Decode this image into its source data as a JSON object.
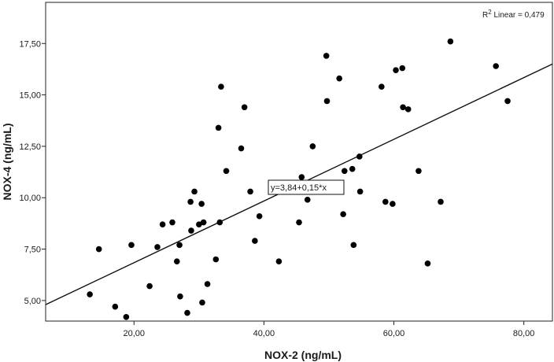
{
  "chart_data": {
    "type": "scatter",
    "title": "",
    "xlabel": "NOX-2 (ng/mL)",
    "ylabel": "NOX-4 (ng/mL)",
    "xlim": [
      6.4,
      84.4
    ],
    "ylim": [
      4.0,
      19.5
    ],
    "x_ticks": [
      20,
      40,
      60,
      80
    ],
    "x_tick_labels": [
      "20,00",
      "40,00",
      "60,00",
      "80,00"
    ],
    "y_ticks": [
      5.0,
      7.5,
      10.0,
      12.5,
      15.0,
      17.5
    ],
    "y_tick_labels": [
      "5,00",
      "7,50",
      "10,00",
      "12,50",
      "15,00",
      "17,50"
    ],
    "grid": false,
    "fit_line": {
      "intercept": 3.84,
      "slope": 0.15,
      "label": "y=3,84+0,15*x"
    },
    "r2_label": {
      "prefix": "R",
      "superscript": "2",
      "suffix": " Linear = 0,479"
    },
    "point_color": "#000000",
    "points": [
      {
        "x": 13.2,
        "y": 5.3
      },
      {
        "x": 14.6,
        "y": 7.5
      },
      {
        "x": 17.1,
        "y": 4.7
      },
      {
        "x": 18.8,
        "y": 4.2
      },
      {
        "x": 19.6,
        "y": 7.7
      },
      {
        "x": 22.4,
        "y": 5.7
      },
      {
        "x": 23.6,
        "y": 7.6
      },
      {
        "x": 24.4,
        "y": 8.7
      },
      {
        "x": 25.9,
        "y": 8.8
      },
      {
        "x": 26.6,
        "y": 6.9
      },
      {
        "x": 27.0,
        "y": 7.7
      },
      {
        "x": 27.1,
        "y": 5.2
      },
      {
        "x": 28.2,
        "y": 4.4
      },
      {
        "x": 28.7,
        "y": 9.8
      },
      {
        "x": 28.8,
        "y": 8.4
      },
      {
        "x": 29.3,
        "y": 10.3
      },
      {
        "x": 30.0,
        "y": 8.7
      },
      {
        "x": 30.4,
        "y": 9.7
      },
      {
        "x": 30.5,
        "y": 4.9
      },
      {
        "x": 30.7,
        "y": 8.8
      },
      {
        "x": 31.3,
        "y": 5.8
      },
      {
        "x": 32.6,
        "y": 7.0
      },
      {
        "x": 33.0,
        "y": 13.4
      },
      {
        "x": 33.2,
        "y": 8.8
      },
      {
        "x": 33.4,
        "y": 15.4
      },
      {
        "x": 34.2,
        "y": 11.3
      },
      {
        "x": 36.5,
        "y": 12.4
      },
      {
        "x": 37.0,
        "y": 14.4
      },
      {
        "x": 37.9,
        "y": 10.3
      },
      {
        "x": 38.6,
        "y": 7.9
      },
      {
        "x": 39.3,
        "y": 9.1
      },
      {
        "x": 42.3,
        "y": 6.9
      },
      {
        "x": 45.4,
        "y": 8.8
      },
      {
        "x": 45.8,
        "y": 11.0
      },
      {
        "x": 46.7,
        "y": 9.9
      },
      {
        "x": 47.5,
        "y": 12.5
      },
      {
        "x": 49.6,
        "y": 16.9
      },
      {
        "x": 49.7,
        "y": 14.7
      },
      {
        "x": 51.6,
        "y": 15.8
      },
      {
        "x": 52.2,
        "y": 9.2
      },
      {
        "x": 52.4,
        "y": 11.3
      },
      {
        "x": 53.6,
        "y": 11.4
      },
      {
        "x": 53.8,
        "y": 7.7
      },
      {
        "x": 54.7,
        "y": 12.0
      },
      {
        "x": 54.8,
        "y": 10.3
      },
      {
        "x": 58.1,
        "y": 15.4
      },
      {
        "x": 58.7,
        "y": 9.8
      },
      {
        "x": 59.8,
        "y": 9.7
      },
      {
        "x": 60.3,
        "y": 16.2
      },
      {
        "x": 61.3,
        "y": 16.3
      },
      {
        "x": 61.4,
        "y": 14.4
      },
      {
        "x": 62.2,
        "y": 14.3
      },
      {
        "x": 63.8,
        "y": 11.3
      },
      {
        "x": 65.2,
        "y": 6.8
      },
      {
        "x": 67.2,
        "y": 9.8
      },
      {
        "x": 68.7,
        "y": 17.6
      },
      {
        "x": 75.7,
        "y": 16.4
      },
      {
        "x": 77.5,
        "y": 14.7
      }
    ]
  }
}
